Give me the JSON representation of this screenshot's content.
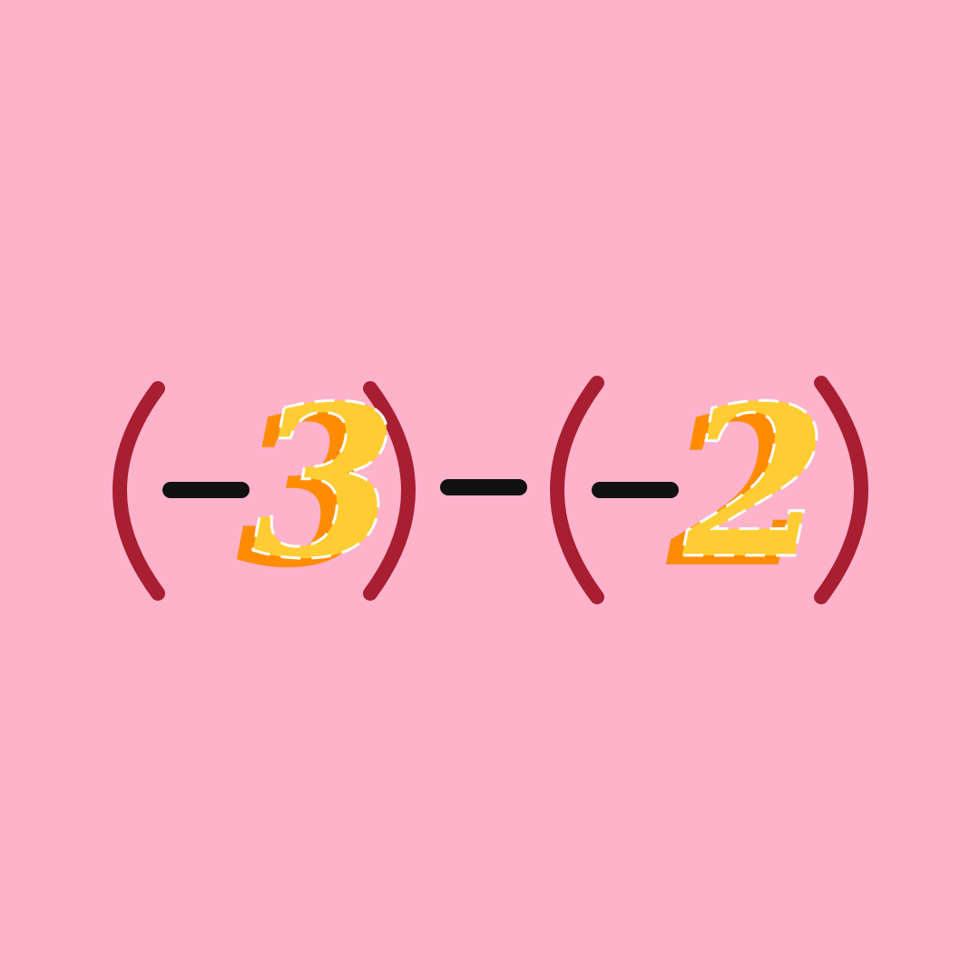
{
  "expression": {
    "first_number": "3",
    "second_number": "2"
  }
}
